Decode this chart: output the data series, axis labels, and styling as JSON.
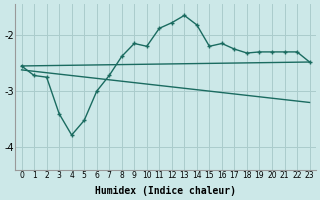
{
  "xlabel": "Humidex (Indice chaleur)",
  "background_color": "#cce8e8",
  "grid_color": "#aacccc",
  "line_color": "#1a6b60",
  "xlim": [
    -0.5,
    23.5
  ],
  "ylim": [
    -4.4,
    -1.45
  ],
  "yticks": [
    -4,
    -3,
    -2
  ],
  "xticks": [
    0,
    1,
    2,
    3,
    4,
    5,
    6,
    7,
    8,
    9,
    10,
    11,
    12,
    13,
    14,
    15,
    16,
    17,
    18,
    19,
    20,
    21,
    22,
    23
  ],
  "x": [
    0,
    1,
    2,
    3,
    4,
    5,
    6,
    7,
    8,
    9,
    10,
    11,
    12,
    13,
    14,
    15,
    16,
    17,
    18,
    19,
    20,
    21,
    22,
    23
  ],
  "line1": [
    -2.55,
    -2.72,
    -2.75,
    -3.4,
    -3.78,
    -3.52,
    -3.0,
    -2.72,
    -2.38,
    -2.15,
    -2.2,
    -1.88,
    -1.78,
    -1.65,
    -1.82,
    -2.2,
    -2.15,
    -2.25,
    -2.32,
    -2.3,
    -2.3,
    -2.3,
    -2.3,
    -2.48
  ],
  "line2_x": [
    0,
    23
  ],
  "line2_y": [
    -2.55,
    -2.48
  ],
  "line3_x": [
    0,
    23
  ],
  "line3_y": [
    -2.62,
    -3.2
  ]
}
